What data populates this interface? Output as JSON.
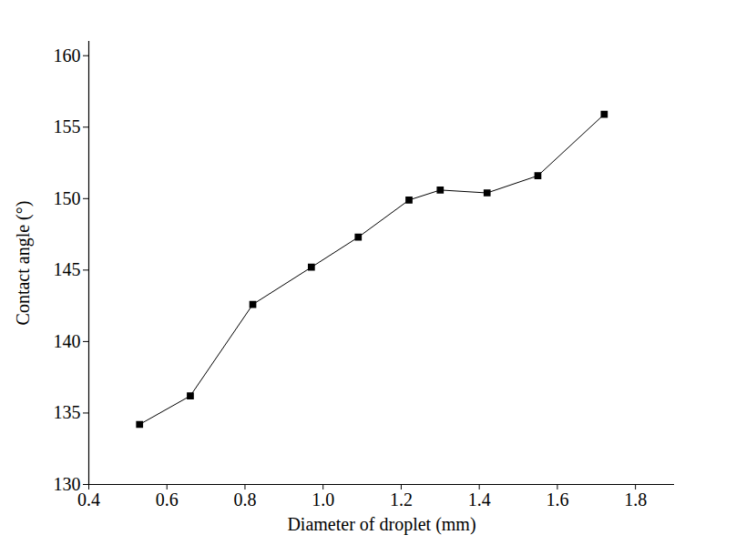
{
  "chart_data": {
    "type": "line",
    "x_label": "Diameter of droplet (mm)",
    "y_label": "Contact angle (°)",
    "x": [
      0.53,
      0.66,
      0.82,
      0.97,
      1.09,
      1.22,
      1.3,
      1.42,
      1.55,
      1.72
    ],
    "values": [
      134.2,
      136.2,
      142.6,
      145.2,
      147.3,
      149.9,
      150.6,
      150.4,
      151.6,
      155.9
    ],
    "color": "#000000",
    "marker": "square",
    "line_style": "solid",
    "xlim": [
      0.4,
      1.9
    ],
    "xticks": [
      0.4,
      0.6,
      0.8,
      {
        "value": 1,
        "label": "1.0"
      },
      1.2,
      1.4,
      1.6,
      1.8
    ],
    "ylim": [
      130,
      161
    ],
    "yticks": [
      130,
      135,
      140,
      145,
      150,
      155,
      160
    ],
    "grid": false
  }
}
